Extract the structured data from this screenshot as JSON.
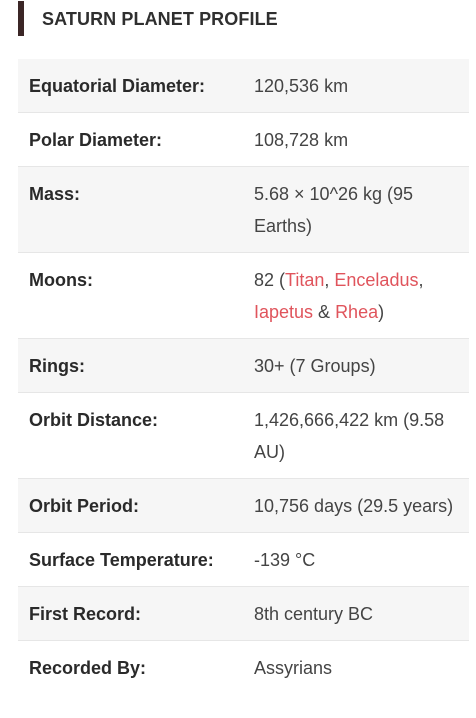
{
  "heading": {
    "title": "SATURN PLANET PROFILE"
  },
  "rows": [
    {
      "label": "Equatorial Diameter:",
      "value": "120,536 km"
    },
    {
      "label": "Polar Diameter:",
      "value": "108,728 km"
    },
    {
      "label": "Mass:",
      "value": "5.68 × 10^26 kg (95 Earths)"
    },
    {
      "label": "Moons:",
      "value_prefix": "82 (",
      "moons": [
        "Titan",
        "Enceladus",
        "Iapetus",
        "Rhea"
      ],
      "sep1": ", ",
      "sep2": ", ",
      "sep3": " & ",
      "value_suffix": ")"
    },
    {
      "label": "Rings:",
      "value": "30+ (7 Groups)"
    },
    {
      "label": "Orbit Distance:",
      "value": "1,426,666,422 km (9.58 AU)"
    },
    {
      "label": "Orbit Period:",
      "value": "10,756 days (29.5 years)"
    },
    {
      "label": "Surface Temperature:",
      "value": "-139 °C"
    },
    {
      "label": "First Record:",
      "value": "8th century BC"
    },
    {
      "label": "Recorded By:",
      "value": "Assyrians"
    }
  ],
  "colors": {
    "accent_bar": "#3b2626",
    "link": "#e0545c",
    "row_shade": "#f6f6f6"
  }
}
